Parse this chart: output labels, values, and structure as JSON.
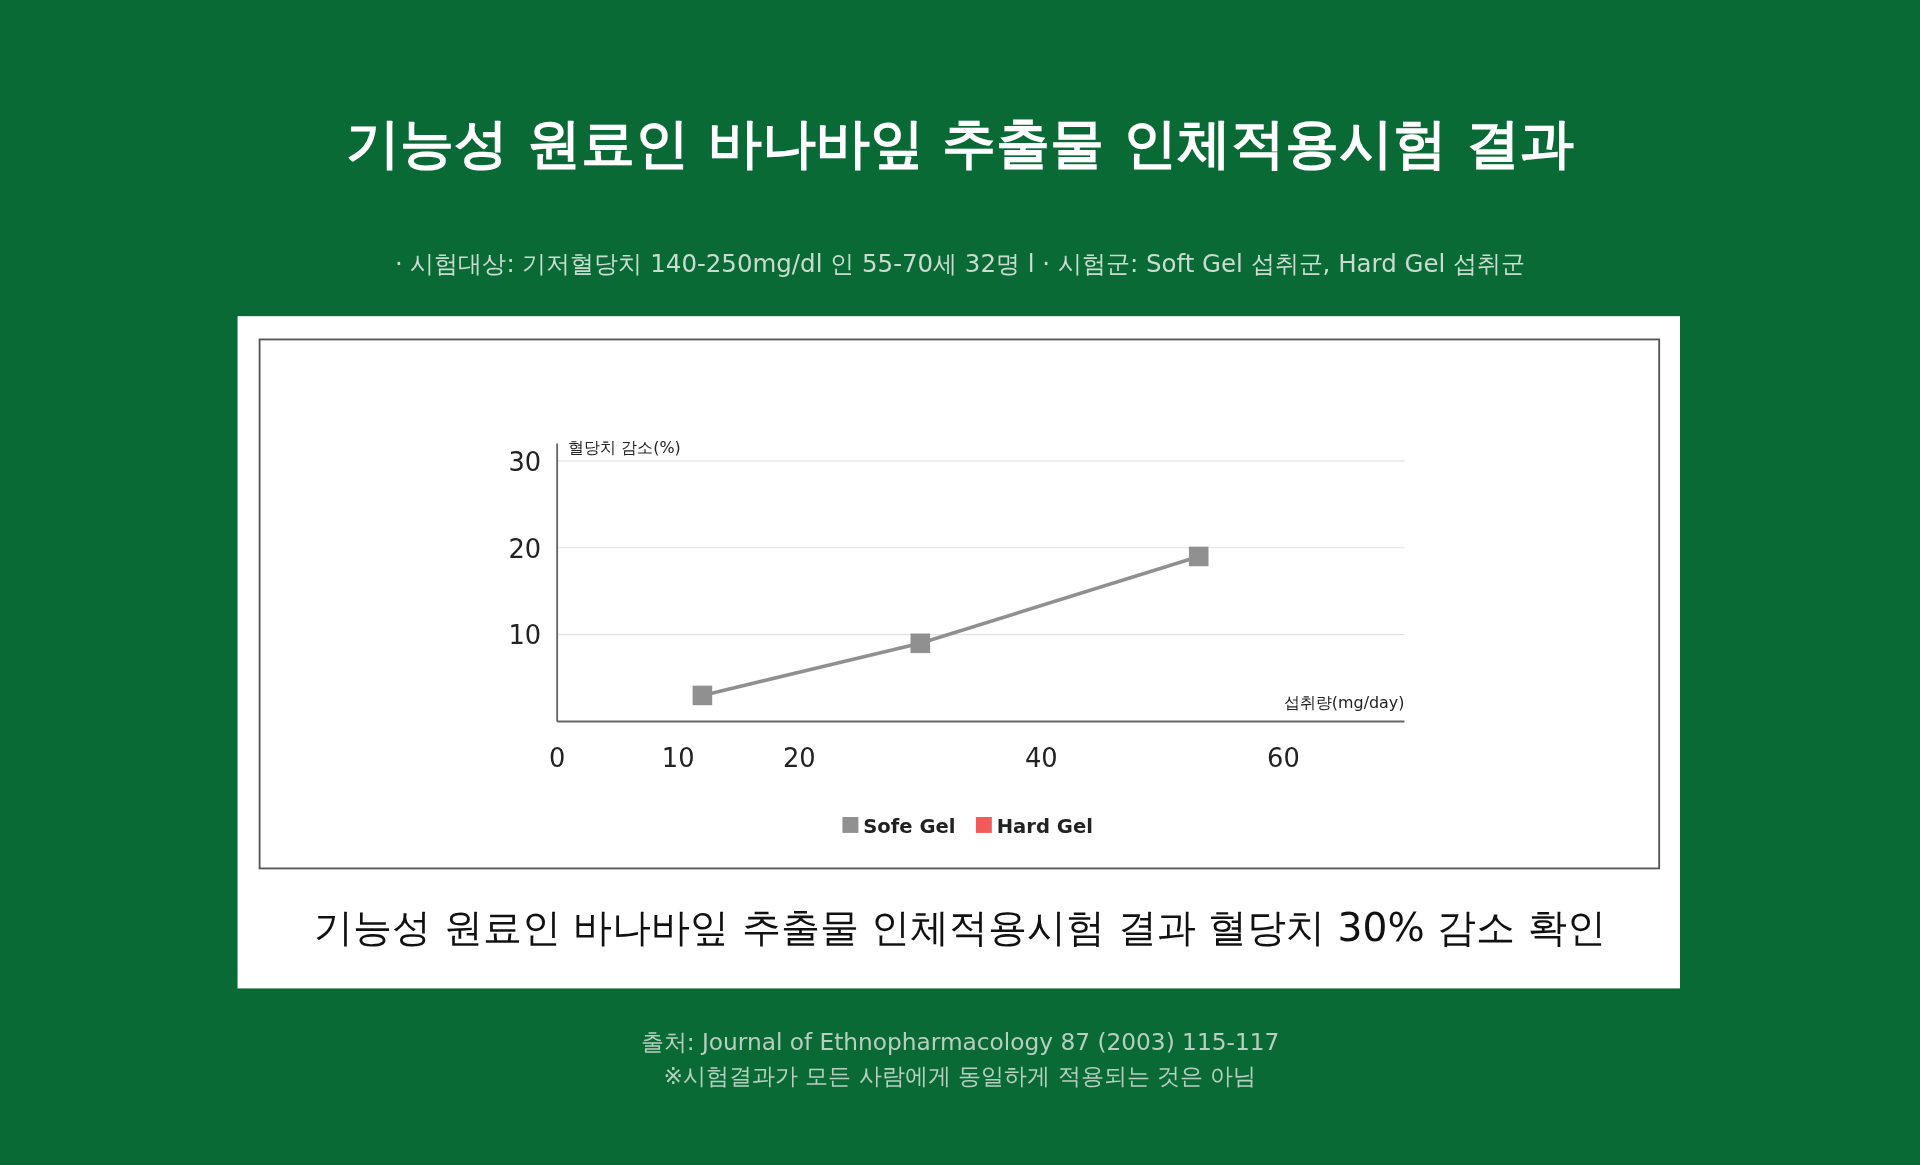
{
  "chart_data": {
    "type": "line",
    "title": "기능성 원료인 바나바잎 추출물 인체적용시험 결과",
    "subtitle": "· 시험대상: 기저혈당치 140-250mg/dl 인 55-70세 32명     l     · 시험군: Soft Gel 섭취군, Hard Gel 섭취군",
    "xlabel": "섭취량(mg/day)",
    "ylabel": "혈당치 감소(%)",
    "x": [
      12,
      30,
      53
    ],
    "series": [
      {
        "name": "Sofe Gel",
        "color": "#909090",
        "values": [
          3,
          9,
          19
        ]
      },
      {
        "name": "Hard Gel",
        "color": "#f05a5a",
        "values": [
          null,
          null,
          null
        ]
      }
    ],
    "xlim": [
      0,
      70
    ],
    "xticks": [
      0,
      10,
      20,
      40,
      60
    ],
    "ylim": [
      0,
      32
    ],
    "yticks": [
      10,
      20,
      30
    ],
    "grid": "y",
    "legend": "bottom",
    "marker": "square",
    "line_style": "solid",
    "annotations": [
      "기능성 원료인 바나바잎 추출물 인체적용시험 결과 혈당치 30% 감소 확인",
      "출처: Journal of Ethnopharmacology 87 (2003) 115-117",
      "※시험결과가 모든 사람에게 동일하게 적용되는 것은 아님"
    ]
  }
}
